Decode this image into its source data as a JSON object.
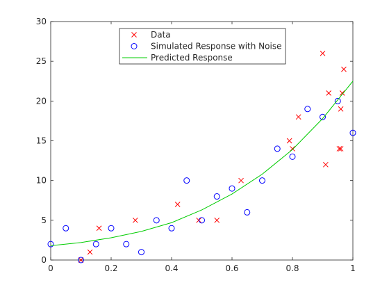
{
  "chart_data": {
    "type": "scatter",
    "title": "",
    "xlabel": "",
    "ylabel": "",
    "xlim": [
      0,
      1
    ],
    "ylim": [
      0,
      30
    ],
    "xticks": [
      0,
      0.2,
      0.4,
      0.6,
      0.8,
      1
    ],
    "xtick_labels": [
      "0",
      "0.2",
      "0.4",
      "0.6",
      "0.8",
      "1"
    ],
    "yticks": [
      0,
      5,
      10,
      15,
      20,
      25,
      30
    ],
    "ytick_labels": [
      "0",
      "5",
      "10",
      "15",
      "20",
      "25",
      "30"
    ],
    "grid": false,
    "legend_position": "top-center",
    "series": [
      {
        "name": "Data",
        "marker": "x",
        "color": "#ff0000",
        "x": [
          0.1,
          0.13,
          0.16,
          0.28,
          0.42,
          0.49,
          0.55,
          0.63,
          0.79,
          0.8,
          0.82,
          0.9,
          0.91,
          0.92,
          0.955,
          0.96,
          0.96,
          0.965,
          0.97
        ],
        "y": [
          0.0,
          1.0,
          4.0,
          5.0,
          7.0,
          5.0,
          5.0,
          10.0,
          15.0,
          14.0,
          18.0,
          26.0,
          12.0,
          21.0,
          14.0,
          14.0,
          19.0,
          21.0,
          24.0
        ]
      },
      {
        "name": "Simulated Response with Noise",
        "marker": "o",
        "color": "#0000ff",
        "x": [
          0.0,
          0.05,
          0.1,
          0.15,
          0.2,
          0.25,
          0.3,
          0.35,
          0.4,
          0.45,
          0.5,
          0.55,
          0.6,
          0.65,
          0.7,
          0.75,
          0.8,
          0.85,
          0.9,
          0.95,
          1.0
        ],
        "y": [
          2.0,
          4.0,
          0.0,
          2.0,
          4.0,
          2.0,
          1.0,
          5.0,
          4.0,
          10.0,
          5.0,
          8.0,
          9.0,
          6.0,
          10.0,
          14.0,
          13.0,
          19.0,
          18.0,
          20.0,
          16.0
        ]
      },
      {
        "name": "Predicted Response",
        "marker": "line",
        "color": "#00cc00",
        "x": [
          0.0,
          0.1,
          0.2,
          0.3,
          0.4,
          0.5,
          0.6,
          0.7,
          0.8,
          0.9,
          1.0
        ],
        "y": [
          1.8,
          2.2,
          2.8,
          3.6,
          4.7,
          6.3,
          8.3,
          10.8,
          13.9,
          17.8,
          22.5
        ]
      }
    ]
  }
}
